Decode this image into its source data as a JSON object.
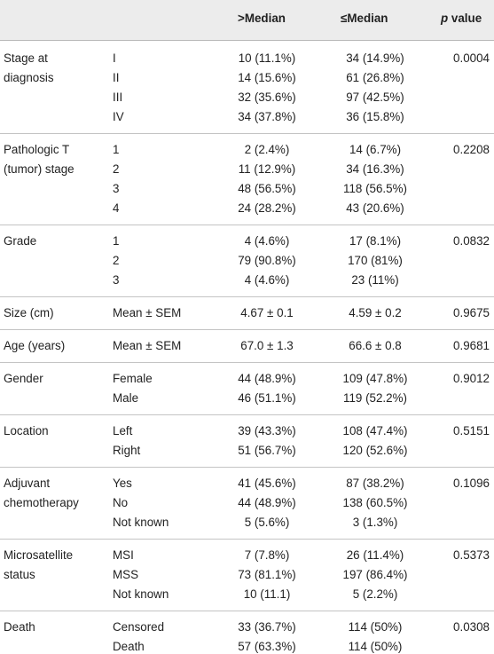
{
  "header": {
    "col_gt": ">Median",
    "col_le": "≤Median",
    "col_p": "p",
    "col_p_rest": " value"
  },
  "rows": [
    {
      "variable": [
        "Stage at",
        "diagnosis"
      ],
      "p": "0.0004",
      "levels": [
        {
          "label": "I",
          "gt": "10 (11.1%)",
          "le": "34 (14.9%)"
        },
        {
          "label": "II",
          "gt": "14 (15.6%)",
          "le": "61 (26.8%)"
        },
        {
          "label": "III",
          "gt": "32 (35.6%)",
          "le": "97 (42.5%)"
        },
        {
          "label": "IV",
          "gt": "34 (37.8%)",
          "le": "36 (15.8%)"
        }
      ]
    },
    {
      "variable": [
        "Pathologic T",
        "(tumor) stage"
      ],
      "p": "0.2208",
      "levels": [
        {
          "label": "1",
          "gt": "2 (2.4%)",
          "le": "14 (6.7%)"
        },
        {
          "label": "2",
          "gt": "11 (12.9%)",
          "le": "34 (16.3%)"
        },
        {
          "label": "3",
          "gt": "48 (56.5%)",
          "le": "118 (56.5%)"
        },
        {
          "label": "4",
          "gt": "24 (28.2%)",
          "le": "43 (20.6%)"
        }
      ]
    },
    {
      "variable": [
        "Grade"
      ],
      "p": "0.0832",
      "levels": [
        {
          "label": "1",
          "gt": "4 (4.6%)",
          "le": "17 (8.1%)"
        },
        {
          "label": "2",
          "gt": "79 (90.8%)",
          "le": "170 (81%)"
        },
        {
          "label": "3",
          "gt": "4 (4.6%)",
          "le": "23 (11%)"
        }
      ]
    },
    {
      "variable": [
        "Size (cm)"
      ],
      "p": "0.9675",
      "levels": [
        {
          "label": "Mean ± SEM",
          "gt": "4.67 ± 0.1",
          "le": "4.59 ± 0.2"
        }
      ]
    },
    {
      "variable": [
        "Age (years)"
      ],
      "p": "0.9681",
      "levels": [
        {
          "label": "Mean ± SEM",
          "gt": "67.0 ± 1.3",
          "le": "66.6 ± 0.8"
        }
      ]
    },
    {
      "variable": [
        "Gender"
      ],
      "p": "0.9012",
      "levels": [
        {
          "label": "Female",
          "gt": "44 (48.9%)",
          "le": "109 (47.8%)"
        },
        {
          "label": "Male",
          "gt": "46 (51.1%)",
          "le": "119 (52.2%)"
        }
      ]
    },
    {
      "variable": [
        "Location"
      ],
      "p": "0.5151",
      "levels": [
        {
          "label": "Left",
          "gt": "39 (43.3%)",
          "le": "108 (47.4%)"
        },
        {
          "label": "Right",
          "gt": "51 (56.7%)",
          "le": "120 (52.6%)"
        }
      ]
    },
    {
      "variable": [
        "Adjuvant",
        "chemotherapy"
      ],
      "p": "0.1096",
      "levels": [
        {
          "label": "Yes",
          "gt": "41 (45.6%)",
          "le": "87 (38.2%)"
        },
        {
          "label": "No",
          "gt": "44 (48.9%)",
          "le": "138 (60.5%)"
        },
        {
          "label": "Not known",
          "gt": "5 (5.6%)",
          "le": "3 (1.3%)"
        }
      ]
    },
    {
      "variable": [
        "Microsatellite",
        "status"
      ],
      "p": "0.5373",
      "levels": [
        {
          "label": "MSI",
          "gt": "7 (7.8%)",
          "le": "26 (11.4%)"
        },
        {
          "label": "MSS",
          "gt": "73 (81.1%)",
          "le": "197 (86.4%)"
        },
        {
          "label": "Not known",
          "gt": "10 (11.1)",
          "le": "5 (2.2%)"
        }
      ]
    },
    {
      "variable": [
        "Death"
      ],
      "p": "0.0308",
      "levels": [
        {
          "label": "Censored",
          "gt": "33 (36.7%)",
          "le": "114 (50%)"
        },
        {
          "label": "Death",
          "gt": "57 (63.3%)",
          "le": "114 (50%)"
        }
      ]
    }
  ]
}
